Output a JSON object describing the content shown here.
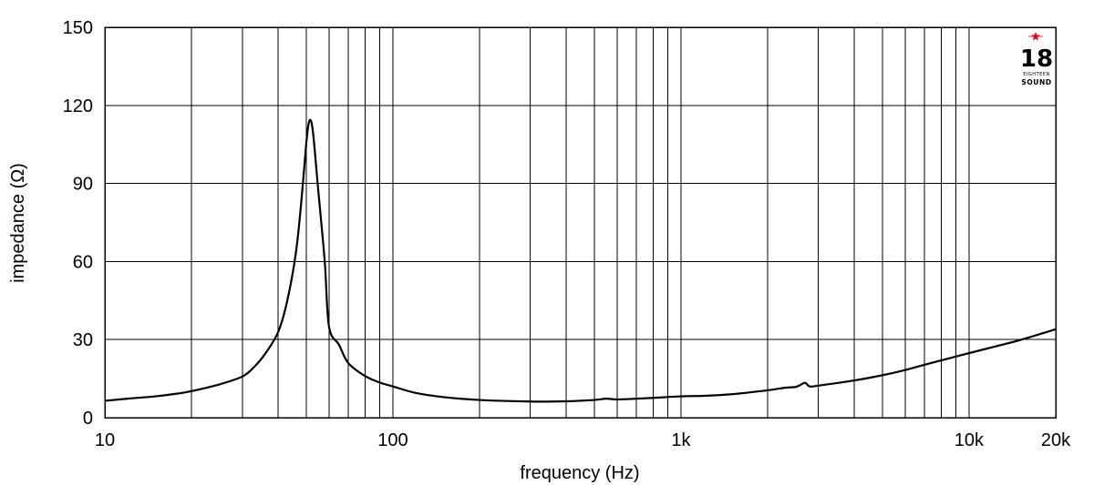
{
  "chart_data": {
    "type": "line",
    "xlabel": "frequency (Hz)",
    "ylabel": "impedance (Ω)",
    "x_scale": "log",
    "xlim": [
      10,
      20000
    ],
    "ylim": [
      0,
      150
    ],
    "grid": true,
    "x_ticks": [
      10,
      100,
      1000,
      10000,
      20000
    ],
    "x_tick_labels": [
      "10",
      "100",
      "1k",
      "10k",
      "20k"
    ],
    "y_ticks": [
      0,
      30,
      60,
      90,
      120,
      150
    ],
    "y_tick_labels": [
      "0",
      "30",
      "60",
      "90",
      "120",
      "150"
    ],
    "series": [
      {
        "x": [
          10,
          12,
          15,
          18,
          20,
          25,
          30,
          33,
          36,
          40,
          43,
          46,
          48,
          50,
          51,
          52,
          53,
          55,
          58,
          60,
          65,
          70,
          80,
          90,
          100,
          120,
          150,
          200,
          300,
          400,
          500,
          550,
          600,
          700,
          800,
          1000,
          1200,
          1500,
          2000,
          2300,
          2500,
          2600,
          2700,
          2800,
          3000,
          4000,
          5000,
          6000,
          7000,
          8000,
          10000,
          15000,
          20000
        ],
        "y": [
          6.5,
          7.3,
          8.2,
          9.3,
          10.2,
          12.8,
          15.8,
          19.5,
          24.5,
          33.0,
          45.0,
          63.0,
          82.0,
          105.0,
          113.0,
          114.0,
          108.0,
          88.0,
          60.0,
          35.0,
          28.0,
          21.0,
          16.0,
          13.5,
          12.0,
          9.5,
          7.9,
          6.8,
          6.2,
          6.3,
          6.8,
          7.3,
          7.0,
          7.3,
          7.6,
          8.2,
          8.4,
          9.0,
          10.5,
          11.5,
          11.8,
          12.6,
          13.4,
          12.0,
          12.3,
          14.3,
          16.3,
          18.3,
          20.3,
          22.0,
          24.8,
          29.8,
          34.0
        ]
      }
    ]
  },
  "logo": {
    "number": "18",
    "small_text": "EIGHTEEN",
    "brand": "SOUND",
    "accent_color": "#e8001c"
  }
}
